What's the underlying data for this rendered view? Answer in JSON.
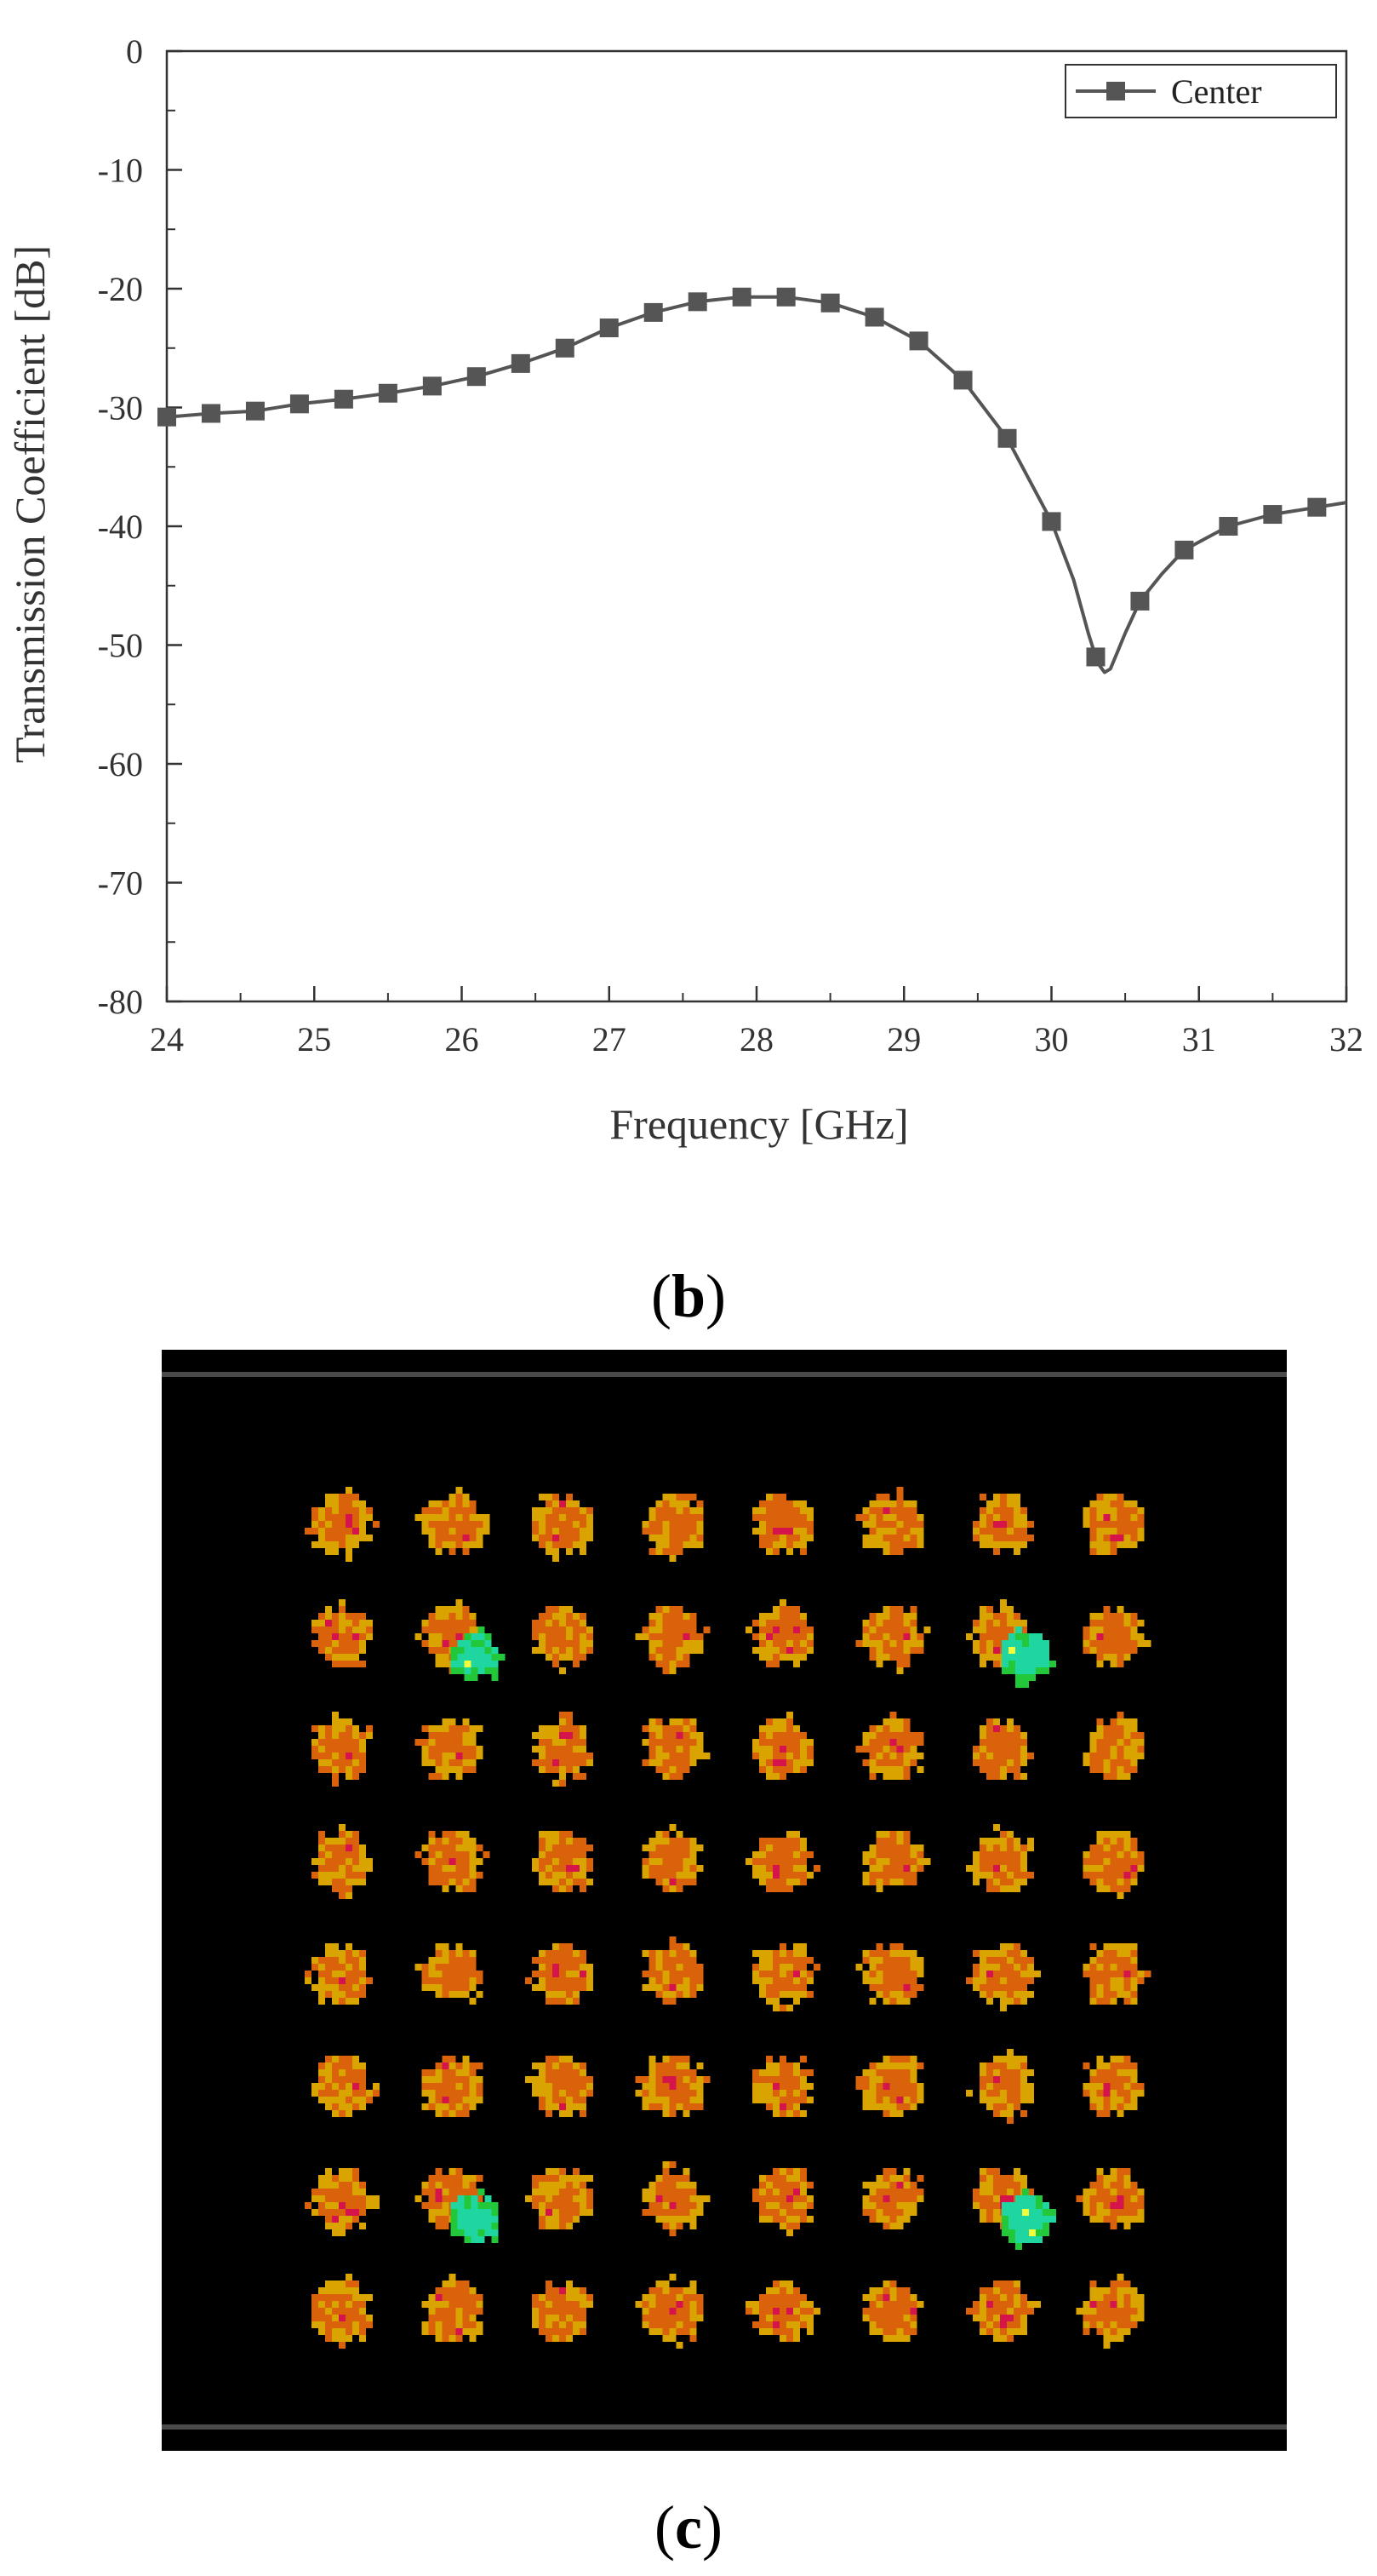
{
  "chart_data": {
    "type": "line",
    "title": "",
    "xlabel": "Frequency [GHz]",
    "ylabel": "Transmission Coefficient [dB]",
    "xlim": [
      24,
      32
    ],
    "ylim": [
      -80,
      0
    ],
    "x_ticks": [
      24,
      25,
      26,
      27,
      28,
      29,
      30,
      31,
      32
    ],
    "y_ticks": [
      0,
      -10,
      -20,
      -30,
      -40,
      -50,
      -60,
      -70,
      -80
    ],
    "grid": false,
    "legend": {
      "position": "top-right",
      "entries": [
        "Center"
      ]
    },
    "series": [
      {
        "name": "Center",
        "color": "#555555",
        "marker": "square",
        "x": [
          24.0,
          24.3,
          24.6,
          24.9,
          25.2,
          25.5,
          25.8,
          26.1,
          26.4,
          26.7,
          27.0,
          27.3,
          27.6,
          27.9,
          28.2,
          28.5,
          28.8,
          29.1,
          29.4,
          29.7,
          30.0,
          30.15,
          30.25,
          30.3,
          30.33,
          30.36,
          30.4,
          30.45,
          30.5,
          30.6,
          30.75,
          30.9,
          31.05,
          31.2,
          31.35,
          31.5,
          31.65,
          31.8,
          32.0
        ],
        "y": [
          -30.8,
          -30.5,
          -30.3,
          -29.7,
          -29.3,
          -28.8,
          -28.2,
          -27.4,
          -26.3,
          -25.0,
          -23.3,
          -22.0,
          -21.1,
          -20.7,
          -20.7,
          -21.2,
          -22.4,
          -24.4,
          -27.7,
          -32.6,
          -39.6,
          -44.5,
          -49.0,
          -51.0,
          -51.8,
          -52.3,
          -52.0,
          -50.5,
          -49.0,
          -46.3,
          -44.0,
          -42.0,
          -41.0,
          -40.0,
          -39.5,
          -39.0,
          -38.7,
          -38.4,
          -38.0
        ],
        "marker_x": [
          24.0,
          24.3,
          24.6,
          24.9,
          25.2,
          25.5,
          25.8,
          26.1,
          26.4,
          26.7,
          27.0,
          27.3,
          27.6,
          27.9,
          28.2,
          28.5,
          28.8,
          29.1,
          29.4,
          29.7,
          30.0,
          30.3,
          30.6,
          30.9,
          31.2,
          31.5,
          31.8
        ],
        "marker_y": [
          -30.8,
          -30.5,
          -30.3,
          -29.7,
          -29.3,
          -28.8,
          -28.2,
          -27.4,
          -26.3,
          -25.0,
          -23.3,
          -22.0,
          -21.1,
          -20.7,
          -20.7,
          -21.2,
          -22.4,
          -24.4,
          -27.7,
          -32.6,
          -39.6,
          -51.0,
          -46.3,
          -42.0,
          -40.0,
          -39.0,
          -38.4
        ]
      }
    ]
  },
  "labels": {
    "panel_b": "b",
    "panel_c": "c",
    "paren_open": "(",
    "paren_close": ")"
  },
  "image_panel": {
    "background": "#000000",
    "border_stripe_color": "#4a4a4a",
    "grid_rows": 8,
    "grid_cols": 8,
    "dot_primary_color": "#d9620a",
    "dot_secondary_color": "#d9a300",
    "dot_accent_color": "#d4144a",
    "highlight_color": "#1fd6a0",
    "highlight_edge_color": "#22c83a",
    "highlight_spark_color": "#f2ff3a",
    "highlight_cells": [
      [
        1,
        1
      ],
      [
        1,
        6
      ],
      [
        6,
        1
      ],
      [
        6,
        6
      ]
    ]
  }
}
